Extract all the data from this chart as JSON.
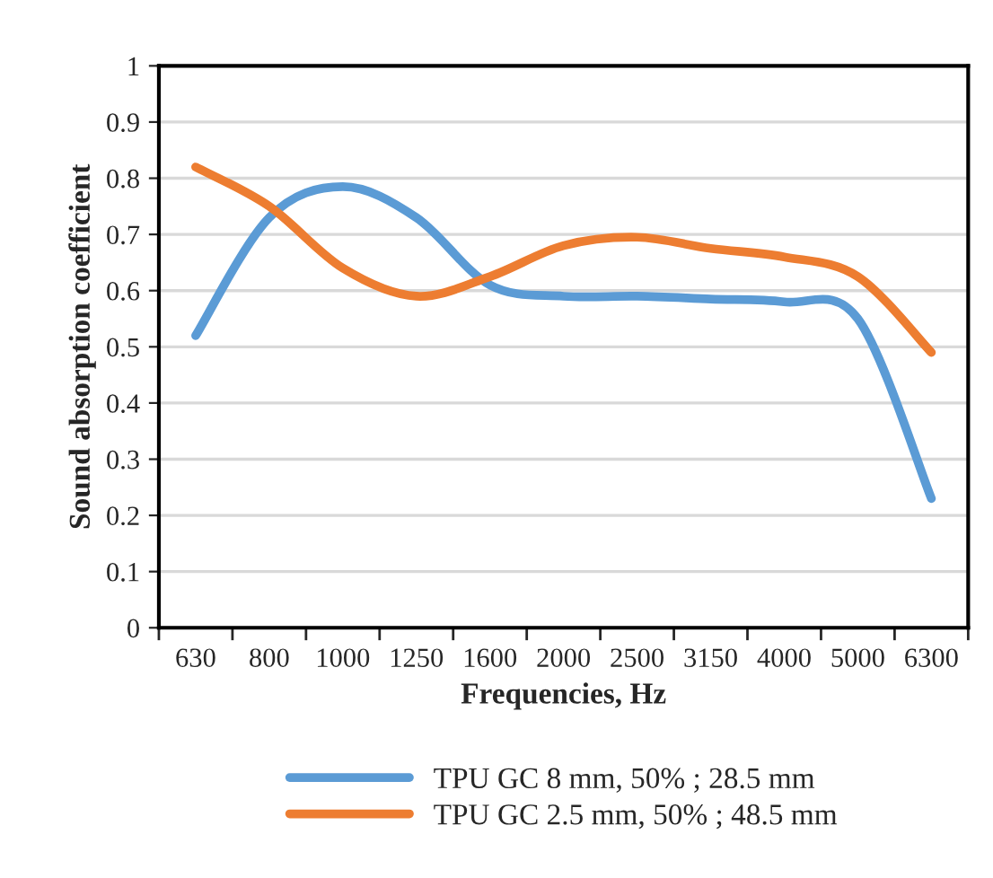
{
  "chart_data": {
    "type": "line",
    "xlabel": "Frequencies, Hz",
    "ylabel": "Sound absorption coefficient",
    "categories": [
      "630",
      "800",
      "1000",
      "1250",
      "1600",
      "2000",
      "2500",
      "3150",
      "4000",
      "5000",
      "6300"
    ],
    "series": [
      {
        "name": "TPU GC 8 mm, 50% ; 28.5 mm",
        "color": "#5b9bd5",
        "values": [
          0.52,
          0.73,
          0.785,
          0.73,
          0.61,
          0.59,
          0.59,
          0.585,
          0.58,
          0.55,
          0.23
        ]
      },
      {
        "name": "TPU GC 2.5 mm, 50% ; 48.5 mm",
        "color": "#ed7d31",
        "values": [
          0.82,
          0.75,
          0.64,
          0.59,
          0.625,
          0.68,
          0.695,
          0.675,
          0.66,
          0.625,
          0.49
        ]
      }
    ],
    "ylim": [
      0,
      1
    ],
    "yticks": [
      0,
      0.1,
      0.2,
      0.3,
      0.4,
      0.5,
      0.6,
      0.7,
      0.8,
      0.9,
      1
    ],
    "grid": "y",
    "legend": "bottom",
    "marker": "none",
    "line_style": "solid"
  }
}
